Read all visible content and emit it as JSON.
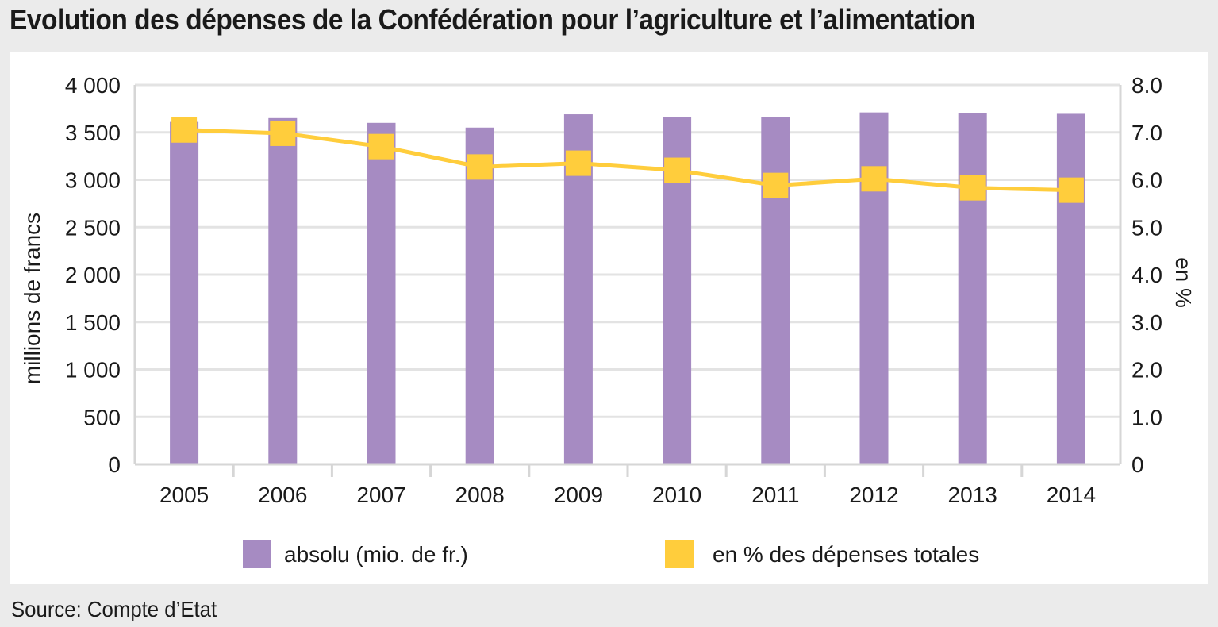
{
  "title": "Evolution des dépenses de la Confédération pour l’agriculture et l’alimentation",
  "source": "Source: Compte d’Etat",
  "colors": {
    "bars": "#a68bc2",
    "line": "#ffcd3c",
    "grid": "#e3e3e3",
    "axis": "#d6d6d6"
  },
  "chart_data": {
    "type": "bar",
    "title": "Evolution des dépenses de la Confédération pour l’agriculture et l’alimentation",
    "categories": [
      "2005",
      "2006",
      "2007",
      "2008",
      "2009",
      "2010",
      "2011",
      "2012",
      "2013",
      "2014"
    ],
    "series": [
      {
        "name": "absolu (mio. de fr.)",
        "type": "bar",
        "axis": "left",
        "values": [
          3610,
          3650,
          3600,
          3550,
          3690,
          3665,
          3660,
          3710,
          3705,
          3695
        ]
      },
      {
        "name": "en % des dépenses totales",
        "type": "line",
        "axis": "right",
        "values": [
          7.05,
          6.98,
          6.7,
          6.27,
          6.35,
          6.2,
          5.88,
          6.02,
          5.83,
          5.78
        ]
      }
    ],
    "ylabel": "millions de francs",
    "ylabel_right": "en %",
    "ylim": [
      0,
      4000
    ],
    "ylim_right": [
      0,
      8
    ],
    "yticks": [
      "0",
      "500",
      "1 000",
      "1 500",
      "2 000",
      "2 500",
      "3 000",
      "3 500",
      "4 000"
    ],
    "yticks_right": [
      "0",
      "1.0",
      "2.0",
      "3.0",
      "4.0",
      "5.0",
      "6.0",
      "7.0",
      "8.0"
    ],
    "grid": true,
    "legend_position": "bottom"
  }
}
